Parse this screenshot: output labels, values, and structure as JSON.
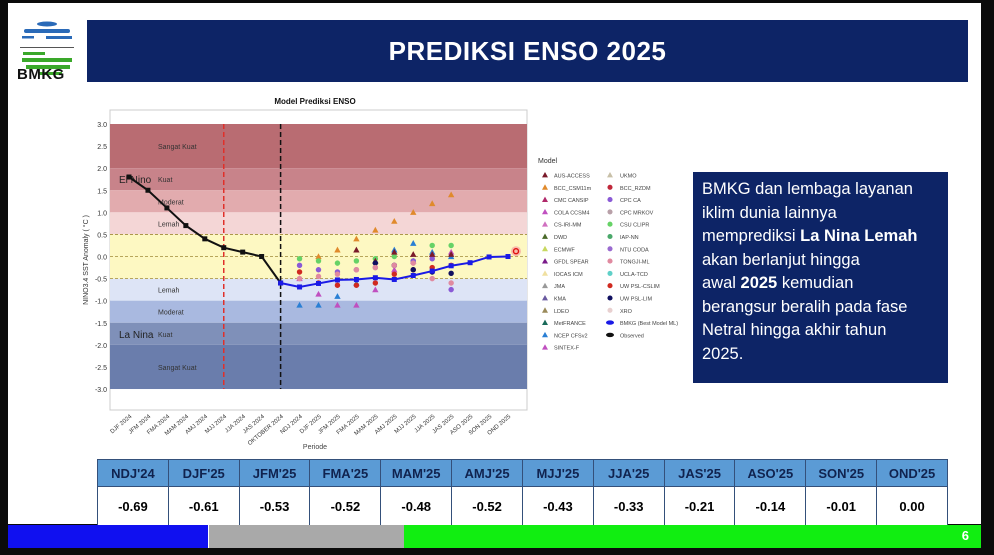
{
  "header": {
    "logo_text": "BMKG",
    "title": "PREDIKSI ENSO 2025"
  },
  "info": {
    "lines": [
      "BMKG dan lembaga layanan",
      "iklim dunia lainnya"
    ],
    "line3_prefix": "memprediksi ",
    "line3_bold": "La Nina Lemah",
    "lines_rest": [
      "akan berlanjut hingga"
    ],
    "line5_prefix": "awal ",
    "line5_bold": "2025",
    " line5_suffix": "",
    "line5_suffix": " kemudian",
    "lines_end": [
      "berangsur beralih pada fase",
      "Netral hingga akhir tahun",
      "2025."
    ]
  },
  "table": {
    "headers": [
      "NDJ'24",
      "DJF'25",
      "JFM'25",
      "FMA'25",
      "MAM'25",
      "AMJ'25",
      "MJJ'25",
      "JJA'25",
      "JAS'25",
      "ASO'25",
      "SON'25",
      "OND'25"
    ],
    "values": [
      "-0.69",
      "-0.61",
      "-0.53",
      "-0.52",
      "-0.48",
      "-0.52",
      "-0.43",
      "-0.33",
      "-0.21",
      "-0.14",
      "-0.01",
      "0.00"
    ]
  },
  "footer": {
    "page": "6",
    "colors": [
      "#1010f0",
      "#a9a9a9",
      "#11ee11"
    ]
  },
  "chart_data": {
    "type": "line",
    "title": "Model Prediksi ENSO",
    "xlabel": "Periode",
    "ylabel": "NINO3.4 SST Anomaly ( °C )",
    "ylim": [
      -3.0,
      3.0
    ],
    "yticks": [
      "3.0",
      "2.5",
      "2.0",
      "1.5",
      "1.0",
      "0.5",
      "0.0",
      "-0.5",
      "-1.0",
      "-1.5",
      "-2.0",
      "-2.5",
      "-3.0"
    ],
    "categories": [
      "DJF 2024",
      "JFM 2024",
      "FMA 2024",
      "MAM 2024",
      "AMJ 2024",
      "MJJ 2024",
      "JJA 2024",
      "JAS 2024",
      "OKTOBER 2024",
      "NDJ 2024",
      "DJF 2025",
      "JFM 2025",
      "FMA 2025",
      "MAM 2025",
      "AMJ 2025",
      "MJJ 2025",
      "JJA 2025",
      "JAS 2025",
      "ASO 2025",
      "SON 2025",
      "OND 2025"
    ],
    "bands": [
      {
        "from": 2.0,
        "to": 3.0,
        "label": "Sangat Kuat",
        "color": "#b96c72"
      },
      {
        "from": 1.5,
        "to": 2.0,
        "label": "Kuat",
        "color": "#c8838a"
      },
      {
        "from": 1.0,
        "to": 1.5,
        "label": "Moderat",
        "color": "#e2abae"
      },
      {
        "from": 0.5,
        "to": 1.0,
        "label": "Lemah",
        "color": "#f4d6d6"
      },
      {
        "from": -0.5,
        "to": 0.5,
        "label": "",
        "color": "#fdf8c2"
      },
      {
        "from": -1.0,
        "to": -0.5,
        "label": "Lemah",
        "color": "#dde4f6"
      },
      {
        "from": -1.5,
        "to": -1.0,
        "label": "Moderat",
        "color": "#a9b9e0"
      },
      {
        "from": -2.0,
        "to": -1.5,
        "label": "Kuat",
        "color": "#7f90b9"
      },
      {
        "from": -3.0,
        "to": -2.0,
        "label": "Sangat Kuat",
        "color": "#6a7dac"
      }
    ],
    "phase_labels": {
      "el_nino": "El Nino",
      "la_nina": "La Nina"
    },
    "vlines": [
      {
        "category": "MJJ 2024",
        "color": "#e0302a"
      },
      {
        "category": "OKTOBER 2024",
        "color": "#111111"
      }
    ],
    "hlines": [
      0.5,
      0.0,
      -0.5
    ],
    "observed": {
      "name": "Observed",
      "start": 0,
      "values": [
        1.8,
        1.5,
        1.1,
        0.7,
        0.4,
        0.2,
        0.1,
        0.0,
        -0.6
      ],
      "color": "#111111"
    },
    "bmkg": {
      "name": "BMKG (Best Model ML)",
      "start": 8,
      "values": [
        -0.6,
        -0.69,
        -0.61,
        -0.53,
        -0.52,
        -0.48,
        -0.52,
        -0.43,
        -0.33,
        -0.21,
        -0.14,
        -0.01,
        0.0
      ],
      "color": "#1a1ae6"
    },
    "models": [
      {
        "name": "BCC_CSM11m",
        "shape": "triangle",
        "color": "#e08a2c",
        "start": 10,
        "values": [
          0.0,
          0.15,
          0.4,
          0.6,
          0.8,
          1.0,
          1.2,
          1.4
        ]
      },
      {
        "name": "NCEP CFSv2",
        "shape": "triangle",
        "color": "#2a7fd4",
        "start": 9,
        "values": [
          -1.1,
          -1.1,
          -0.9,
          -0.6,
          -0.1,
          0.15,
          0.3,
          0.1,
          0.0
        ]
      },
      {
        "name": "SINTEX-F",
        "shape": "triangle",
        "color": "#c050c0",
        "start": 9,
        "values": [
          -0.5,
          -0.85,
          -1.1,
          -1.1,
          -0.75,
          -0.3,
          -0.1,
          0.05,
          0.1
        ]
      },
      {
        "name": "CSU CLIPR",
        "shape": "circle",
        "color": "#66d266",
        "start": 9,
        "values": [
          -0.05,
          -0.1,
          -0.15,
          -0.1,
          -0.05,
          0.0,
          -0.1,
          0.25,
          0.25
        ]
      },
      {
        "name": "UW PSL-CSLIM",
        "shape": "circle",
        "color": "#d02a20",
        "start": 9,
        "values": [
          -0.35,
          -0.6,
          -0.65,
          -0.65,
          -0.6,
          -0.4,
          -0.3,
          -0.25,
          -0.2
        ]
      },
      {
        "name": "CPC CA",
        "shape": "circle",
        "color": "#8a5ad6",
        "start": 9,
        "values": [
          -0.2,
          -0.3,
          -0.35,
          -0.3,
          -0.25,
          -0.2,
          -0.1,
          -0.05,
          -0.75
        ]
      },
      {
        "name": "AUS-ACCESS",
        "shape": "triangle",
        "color": "#7a1a2a",
        "start": 12,
        "values": [
          0.15,
          -0.1,
          0.1,
          0.05,
          0.05,
          0.05
        ]
      },
      {
        "name": "UW PSL-LIM",
        "shape": "circle",
        "color": "#101060",
        "start": 13,
        "values": [
          -0.15,
          -0.2,
          -0.3,
          -0.35,
          -0.38
        ]
      },
      {
        "name": "TONGJI-ML",
        "shape": "circle",
        "color": "#e08aa0",
        "start": 9,
        "values": [
          -0.5,
          -0.45,
          -0.4,
          -0.3,
          -0.25,
          -0.2,
          -0.15,
          -0.5,
          -0.6
        ]
      }
    ],
    "legend": {
      "title": "Model",
      "placement": "right",
      "left": [
        {
          "name": "AUS-ACCESS",
          "color": "#7a1a2a",
          "shape": "triangle"
        },
        {
          "name": "BCC_CSM11m",
          "color": "#e08a2c",
          "shape": "triangle"
        },
        {
          "name": "CMC CANSIP",
          "color": "#b0286a",
          "shape": "triangle"
        },
        {
          "name": "COLA CCSM4",
          "color": "#c050c0",
          "shape": "triangle"
        },
        {
          "name": "CS-IRI-MM",
          "color": "#d070c0",
          "shape": "triangle"
        },
        {
          "name": "DWD",
          "color": "#4a6a2a",
          "shape": "triangle"
        },
        {
          "name": "ECMWF",
          "color": "#c8d860",
          "shape": "triangle"
        },
        {
          "name": "GFDL SPEAR",
          "color": "#7a1a8a",
          "shape": "triangle"
        },
        {
          "name": "IOCAS ICM",
          "color": "#f0e0a0",
          "shape": "triangle"
        },
        {
          "name": "JMA",
          "color": "#999999",
          "shape": "triangle"
        },
        {
          "name": "KMA",
          "color": "#6a5aa0",
          "shape": "triangle"
        },
        {
          "name": "LDEO",
          "color": "#9a8a5a",
          "shape": "triangle"
        },
        {
          "name": "MetFRANCE",
          "color": "#1a6a5a",
          "shape": "triangle"
        },
        {
          "name": "NCEP CFSv2",
          "color": "#2a7fd4",
          "shape": "triangle"
        },
        {
          "name": "SINTEX-F",
          "color": "#c050c0",
          "shape": "triangle"
        }
      ],
      "right": [
        {
          "name": "UKMO",
          "color": "#c8c0a8",
          "shape": "triangle"
        },
        {
          "name": "BCC_RZDM",
          "color": "#c0283a",
          "shape": "circle"
        },
        {
          "name": "CPC CA",
          "color": "#8a5ad6",
          "shape": "circle"
        },
        {
          "name": "CPC MRKOV",
          "color": "#b8a0a8",
          "shape": "circle"
        },
        {
          "name": "CSU CLIPR",
          "color": "#66d266",
          "shape": "circle"
        },
        {
          "name": "IAP-NN",
          "color": "#4aa86a",
          "shape": "circle"
        },
        {
          "name": "NTU CODA",
          "color": "#9a6ad0",
          "shape": "circle"
        },
        {
          "name": "TONGJI-ML",
          "color": "#e08aa0",
          "shape": "circle"
        },
        {
          "name": "UCLA-TCD",
          "color": "#60d0c8",
          "shape": "circle"
        },
        {
          "name": "UW PSL-CSLIM",
          "color": "#d02a20",
          "shape": "circle"
        },
        {
          "name": "UW PSL-LIM",
          "color": "#101060",
          "shape": "circle"
        },
        {
          "name": "XRO",
          "color": "#e8d0d0",
          "shape": "circle"
        },
        {
          "name": "BMKG (Best Model ML)",
          "color": "#1a1ae6",
          "shape": "line"
        },
        {
          "name": "Observed",
          "color": "#111111",
          "shape": "line"
        }
      ]
    }
  }
}
